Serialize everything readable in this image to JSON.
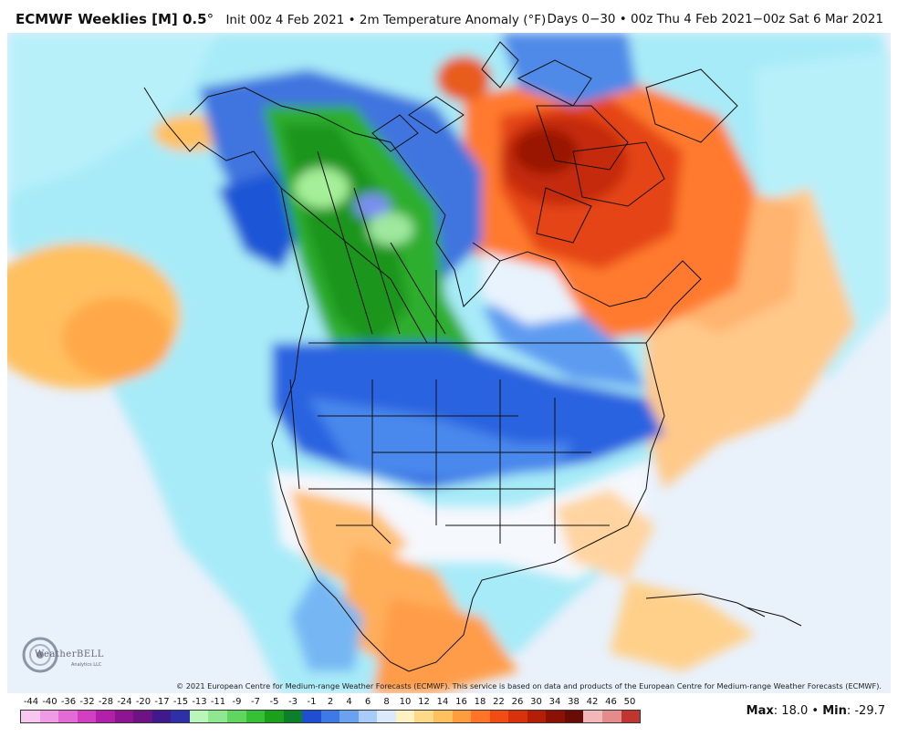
{
  "header": {
    "model": "ECMWF Weeklies [M] 0.5",
    "degree": "°",
    "init": "Init 00z 4 Feb 2021",
    "field": "2m Temperature Anomaly (°F)",
    "days": "Days 0−30 • 00z Thu 4 Feb 2021−00z Sat 6 Mar 2021"
  },
  "copyright": "© 2021 European Centre for Medium-range Weather Forecasts (ECMWF). This service is based on data and products of the European Centre for Medium-range Weather Forecasts (ECMWF).",
  "logo": {
    "name": "WeatherBELL",
    "sub": "Analytics LLC"
  },
  "legend": {
    "labels": [
      "-44",
      "-40",
      "-36",
      "-32",
      "-28",
      "-24",
      "-20",
      "-17",
      "-15",
      "-13",
      "-11",
      "-9",
      "-7",
      "-5",
      "-3",
      "-1",
      "2",
      "4",
      "6",
      "8",
      "10",
      "12",
      "14",
      "16",
      "18",
      "22",
      "26",
      "30",
      "34",
      "38",
      "42",
      "46",
      "50"
    ],
    "colors": [
      "#f7c7f0",
      "#f09be6",
      "#e46ad6",
      "#d23fc2",
      "#b21fa9",
      "#8e1591",
      "#6e1383",
      "#3f1a8c",
      "#2f2fa8",
      "#b9f7b9",
      "#8fe88f",
      "#5fd65f",
      "#35c035",
      "#1aa01a",
      "#0c7f2a",
      "#1f4fd1",
      "#3d7ae6",
      "#6ba2f0",
      "#a8ccf7",
      "#dbe9fb",
      "#fff2c2",
      "#ffd98a",
      "#ffc060",
      "#ff9c3d",
      "#ff7426",
      "#f24b14",
      "#d8320b",
      "#b41e06",
      "#8b1105",
      "#6a0c06",
      "#f0b8b8",
      "#e48c8c",
      "#c2342f"
    ],
    "max_label": "Max",
    "max": "18.0",
    "min_label": "Min",
    "min": "-29.7"
  },
  "map": {
    "title": "2m Temperature Anomaly",
    "warm_color": "#e8531a",
    "cold_color": "#1f8f1f"
  }
}
